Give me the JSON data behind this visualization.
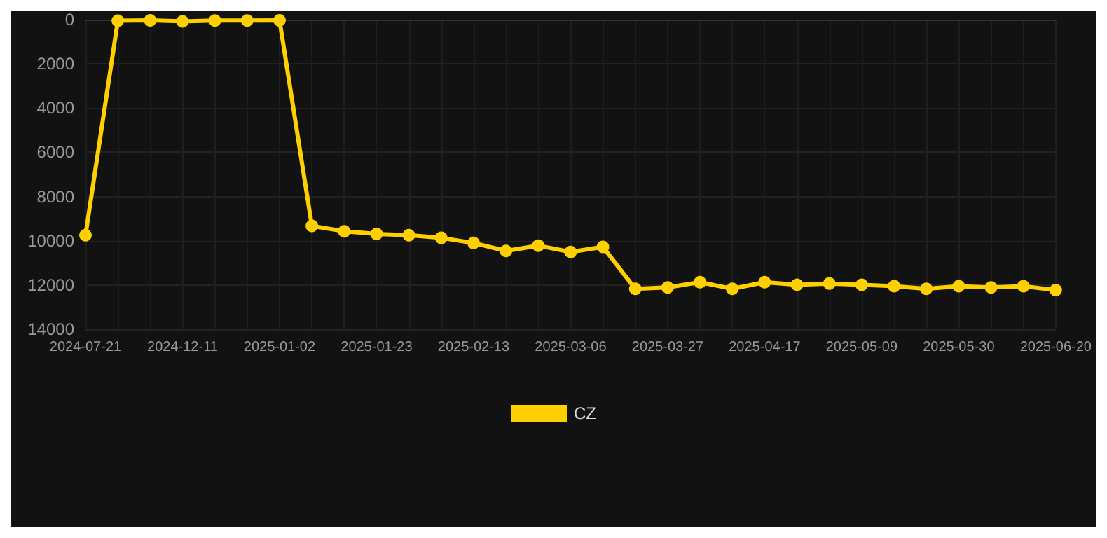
{
  "chart_data": {
    "type": "line",
    "categories": [
      "2024-07-21",
      null,
      null,
      "2024-12-11",
      null,
      null,
      "2025-01-02",
      null,
      null,
      "2025-01-23",
      null,
      null,
      "2025-02-13",
      null,
      null,
      "2025-03-06",
      null,
      null,
      "2025-03-27",
      null,
      null,
      "2025-04-17",
      null,
      null,
      "2025-05-09",
      null,
      null,
      "2025-05-30",
      null,
      null,
      "2025-06-20"
    ],
    "series": [
      {
        "name": "CZ",
        "color": "#ffd000",
        "values": [
          9750,
          50,
          30,
          80,
          40,
          40,
          30,
          9330,
          9570,
          9690,
          9750,
          9870,
          10100,
          10460,
          10220,
          10510,
          10280,
          12170,
          12110,
          11870,
          12170,
          11870,
          11990,
          11930,
          11990,
          12050,
          12170,
          12050,
          12110,
          12050,
          12230
        ]
      }
    ],
    "ylim": [
      14000,
      0
    ],
    "yticks": [
      0,
      2000,
      4000,
      6000,
      8000,
      10000,
      12000,
      14000
    ],
    "grid": true,
    "legend": "bottom",
    "marker": "circle",
    "line_style": "solid"
  }
}
